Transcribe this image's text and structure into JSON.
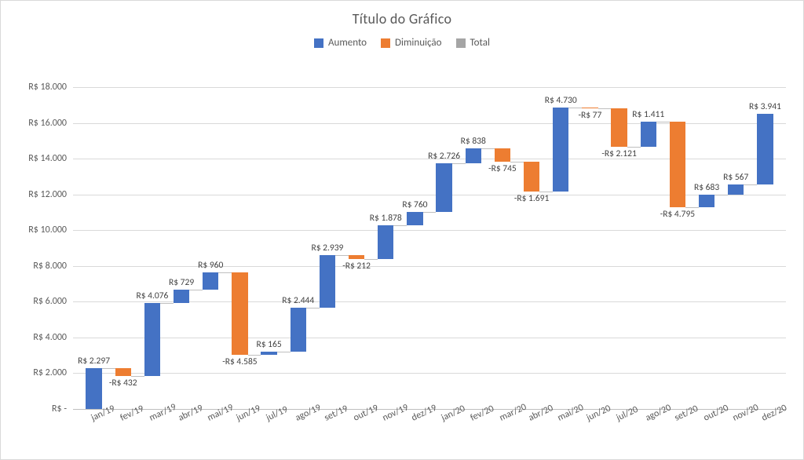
{
  "chart": {
    "type": "waterfall",
    "title": "Título do Gráfico",
    "title_fontsize": 18,
    "background_color": "#ffffff",
    "border_color": "#d9d9d9",
    "grid_color": "#d9d9d9",
    "baseline_color": "#bfbfbf",
    "text_color": "#595959",
    "colors": {
      "increase": "#4472c4",
      "decrease": "#ed7d31",
      "total": "#a5a5a5"
    },
    "font_family": "Calibri, Arial, sans-serif",
    "data_label_fontsize": 11.5,
    "tick_label_fontsize": 12,
    "bar_width_ratio": 0.55,
    "x_label_rotation_deg": -25,
    "legend": {
      "items": [
        {
          "label": "Aumento",
          "color": "#4472c4"
        },
        {
          "label": "Diminuição",
          "color": "#ed7d31"
        },
        {
          "label": "Total",
          "color": "#a5a5a5"
        }
      ]
    },
    "y_axis": {
      "min": 0,
      "max": 18000,
      "step": 2000,
      "tick_prefix": "R$ ",
      "zero_label": "R$ -",
      "thousands_separator": "."
    },
    "categories": [
      "jan/19",
      "fev/19",
      "mar/19",
      "abr/19",
      "mai/19",
      "jun/19",
      "jul/19",
      "ago/19",
      "set/19",
      "out/19",
      "nov/19",
      "dez/19",
      "jan/20",
      "fev/20",
      "mar/20",
      "abr/20",
      "mai/20",
      "jun/20",
      "jul/20",
      "ago/20",
      "set/20",
      "out/20",
      "nov/20",
      "dez/20"
    ],
    "values": [
      2297,
      -432,
      4076,
      729,
      960,
      -4585,
      165,
      2444,
      2939,
      -212,
      1878,
      760,
      2726,
      838,
      -745,
      -1691,
      4730,
      -77,
      -2121,
      1411,
      -4795,
      683,
      567,
      3941
    ],
    "data_labels": [
      "R$ 2.297",
      "-R$ 432",
      "R$ 4.076",
      "R$ 729",
      "R$ 960",
      "-R$ 4.585",
      "R$ 165",
      "R$ 2.444",
      "R$ 2.939",
      "-R$ 212",
      "R$ 1.878",
      "R$ 760",
      "R$ 2.726",
      "R$ 838",
      "-R$ 745",
      "-R$ 1.691",
      "R$ 4.730",
      "-R$ 77",
      "-R$ 2.121",
      "R$ 1.411",
      "-R$ 4.795",
      "R$ 683",
      "R$ 567",
      "R$ 3.941"
    ]
  }
}
